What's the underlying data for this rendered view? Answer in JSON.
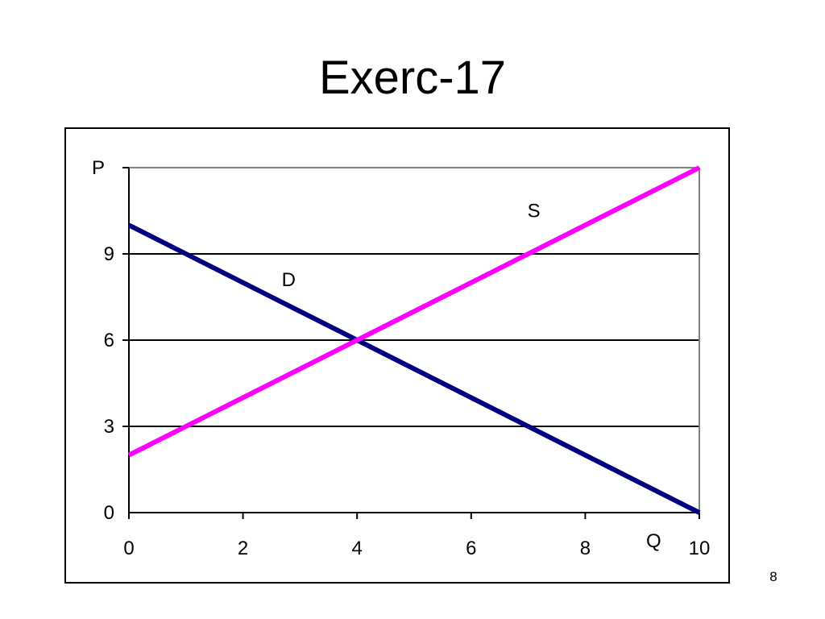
{
  "slide": {
    "title": "Exerc-17",
    "page_number": "8"
  },
  "chart_data": {
    "type": "line",
    "title": "",
    "xlabel": "Q",
    "ylabel": "P",
    "xlim": [
      0,
      10
    ],
    "ylim": [
      0,
      12
    ],
    "x_ticks": [
      0,
      2,
      4,
      6,
      8,
      10
    ],
    "y_ticks": [
      0,
      3,
      6,
      9
    ],
    "gridlines_y": [
      3,
      6,
      9,
      12
    ],
    "grid": true,
    "legend": "none",
    "series": [
      {
        "name": "D",
        "color": "#000080",
        "points": [
          [
            0,
            10
          ],
          [
            10,
            0
          ]
        ],
        "label_at": [
          2.8,
          8.1
        ]
      },
      {
        "name": "S",
        "color": "#FF00FF",
        "points": [
          [
            0,
            2
          ],
          [
            10,
            12
          ]
        ],
        "label_at": [
          7.1,
          10.5
        ]
      }
    ]
  }
}
